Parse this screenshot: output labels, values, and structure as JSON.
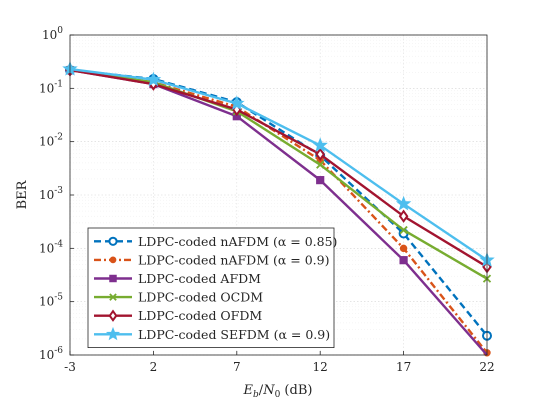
{
  "chart_data": {
    "type": "line",
    "title": "",
    "xlabel": "Eb/N0 (dB)",
    "ylabel": "BER",
    "x": [
      -3,
      2,
      7,
      12,
      17,
      22
    ],
    "x_ticks": [
      -3,
      2,
      7,
      12,
      17,
      22
    ],
    "xlim": [
      -3,
      22
    ],
    "ylim": [
      1e-06,
      1
    ],
    "y_scale": "log",
    "y_ticks": [
      {
        "mantissa": "10",
        "exp": "0",
        "value": 1
      },
      {
        "mantissa": "10",
        "exp": "-1",
        "value": 0.1
      },
      {
        "mantissa": "10",
        "exp": "-2",
        "value": 0.01
      },
      {
        "mantissa": "10",
        "exp": "-3",
        "value": 0.001
      },
      {
        "mantissa": "10",
        "exp": "-4",
        "value": 0.0001
      },
      {
        "mantissa": "10",
        "exp": "-5",
        "value": 1e-05
      },
      {
        "mantissa": "10",
        "exp": "-6",
        "value": 1e-06
      }
    ],
    "grid": true,
    "legend_position": "bottom-left",
    "series": [
      {
        "name": "LDPC-coded nAFDM (α = 0.85)",
        "color": "#0072BD",
        "style": "dashed",
        "marker": "circle-open",
        "values": [
          0.22,
          0.15,
          0.055,
          0.0055,
          0.00019,
          2.3e-06
        ]
      },
      {
        "name": "LDPC-coded nAFDM (α = 0.9)",
        "color": "#D95319",
        "style": "dashdot",
        "marker": "circle-filled",
        "values": [
          0.22,
          0.13,
          0.045,
          0.0045,
          0.0001,
          1.1e-06
        ]
      },
      {
        "name": "LDPC-coded AFDM",
        "color": "#7E2F8E",
        "style": "solid",
        "marker": "square",
        "values": [
          0.22,
          0.12,
          0.03,
          0.0019,
          6e-05,
          9e-07
        ]
      },
      {
        "name": "LDPC-coded OCDM",
        "color": "#77AC30",
        "style": "solid",
        "marker": "x",
        "values": [
          0.22,
          0.13,
          0.037,
          0.0037,
          0.00022,
          2.7e-05
        ]
      },
      {
        "name": "LDPC-coded OFDM",
        "color": "#A2142F",
        "style": "solid",
        "marker": "diamond",
        "values": [
          0.22,
          0.12,
          0.04,
          0.0058,
          0.0004,
          4.5e-05
        ]
      },
      {
        "name": "LDPC-coded SEFDM (α = 0.9)",
        "color": "#4DBEEE",
        "style": "solid",
        "marker": "star",
        "values": [
          0.23,
          0.145,
          0.052,
          0.0085,
          0.00068,
          6e-05
        ]
      }
    ]
  }
}
